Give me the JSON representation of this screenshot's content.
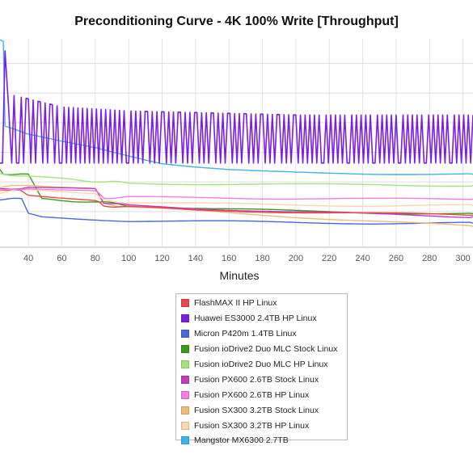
{
  "chart_data": {
    "type": "line",
    "title": "Preconditioning Curve - 4K 100% Write [Throughput]",
    "xlabel": "Minutes",
    "ylabel": "",
    "x_ticks": [
      40,
      60,
      80,
      100,
      120,
      140,
      160,
      180,
      200,
      220,
      240,
      260,
      280,
      300
    ],
    "xlim": [
      23,
      306
    ],
    "ylim": [
      0,
      260
    ],
    "grid": true,
    "legend_position": "below",
    "series": [
      {
        "name": "FlashMAX II HP Linux",
        "color": "#e8484a",
        "x": [
          23,
          35,
          40,
          60,
          80,
          85,
          100,
          140,
          200,
          250,
          306
        ],
        "y": [
          70,
          70,
          66,
          62,
          58,
          52,
          50,
          46,
          44,
          42,
          40
        ]
      },
      {
        "name": "Huawei ES3000 2.4TB HP Linux",
        "color": "#7a1fe0",
        "x": [
          23,
          26,
          28,
          30,
          40,
          60,
          100,
          200,
          306
        ],
        "y": [
          245,
          245,
          180,
          190,
          185,
          175,
          170,
          165,
          165
        ],
        "oscillation_low": 105
      },
      {
        "name": "Micron P420m 1.4TB Linux",
        "color": "#4a67db",
        "x": [
          23,
          36,
          40,
          48,
          70,
          100,
          150,
          200,
          250,
          306
        ],
        "y": [
          60,
          60,
          42,
          38,
          36,
          33,
          32,
          31,
          30,
          30
        ]
      },
      {
        "name": "Fusion ioDrive2 Duo MLC Stock Linux",
        "color": "#3e9a1e",
        "x": [
          23,
          25,
          40,
          48,
          85,
          100,
          150,
          200,
          250,
          306
        ],
        "y": [
          98,
          92,
          90,
          60,
          56,
          52,
          48,
          45,
          43,
          42
        ]
      },
      {
        "name": "Fusion ioDrive2 Duo MLC HP Linux",
        "color": "#a6e37c",
        "x": [
          23,
          40,
          60,
          85,
          100,
          150,
          200,
          250,
          306
        ],
        "y": [
          92,
          88,
          85,
          82,
          80,
          79,
          78,
          78,
          77
        ]
      },
      {
        "name": "Fusion PX600 2.6TB Stock Linux",
        "color": "#c23db8",
        "x": [
          23,
          40,
          80,
          85,
          100,
          150,
          200,
          250,
          306
        ],
        "y": [
          72,
          75,
          72,
          56,
          52,
          48,
          44,
          41,
          38
        ]
      },
      {
        "name": "Fusion PX600 2.6TB HP Linux",
        "color": "#f07fe0",
        "x": [
          23,
          40,
          80,
          85,
          100,
          150,
          200,
          250,
          306
        ],
        "y": [
          70,
          74,
          70,
          62,
          62,
          62,
          61,
          60,
          60
        ]
      },
      {
        "name": "Fusion SX300 3.2TB Stock Linux",
        "color": "#eebb78",
        "x": [
          23,
          40,
          80,
          85,
          100,
          150,
          200,
          250,
          306
        ],
        "y": [
          74,
          78,
          74,
          55,
          50,
          44,
          38,
          32,
          26
        ]
      },
      {
        "name": "Fusion SX300 3.2TB HP Linux",
        "color": "#f8d8ac",
        "x": [
          23,
          40,
          80,
          85,
          100,
          150,
          200,
          250,
          306
        ],
        "y": [
          68,
          72,
          68,
          58,
          56,
          54,
          53,
          52,
          52
        ]
      },
      {
        "name": "Mangstor MX6300 2.7TB",
        "color": "#3eb2eb",
        "x": [
          23,
          25,
          26,
          40,
          60,
          80,
          100,
          120,
          140,
          160,
          180,
          200,
          250,
          306
        ],
        "y": [
          260,
          258,
          150,
          140,
          132,
          125,
          115,
          105,
          100,
          96,
          94,
          93,
          92,
          91
        ]
      }
    ]
  }
}
